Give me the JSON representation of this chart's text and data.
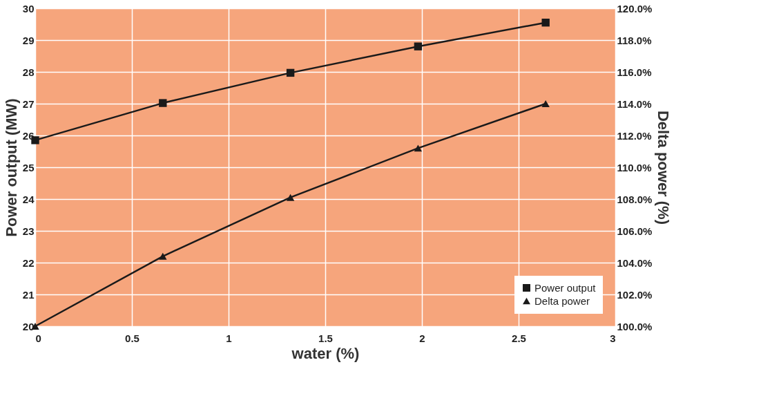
{
  "chart_data": {
    "type": "line",
    "xlabel": "water (%)",
    "ylabel": "Power output (MW)",
    "y2label": "Delta power (%)",
    "x": [
      0,
      0.66,
      1.32,
      1.98,
      2.64
    ],
    "series": [
      {
        "name": "Power output",
        "color": "#1a1a1a",
        "marker": "square",
        "values": [
          25.85,
          27.02,
          27.97,
          28.8,
          29.55
        ]
      },
      {
        "name": "Delta power",
        "color": "#1a1a1a",
        "marker": "triangle",
        "axis": "y2",
        "values": [
          100.0,
          104.4,
          108.1,
          111.2,
          114.0
        ]
      }
    ],
    "xlim": [
      0,
      3
    ],
    "xticks": [
      0,
      0.5,
      1,
      1.5,
      2,
      2.5,
      3
    ],
    "ylim": [
      20,
      30
    ],
    "yticks": [
      20,
      21,
      22,
      23,
      24,
      25,
      26,
      27,
      28,
      29,
      30
    ],
    "y2lim": [
      100,
      120
    ],
    "y2ticks": [
      {
        "value": 100,
        "label": "100.0%"
      },
      {
        "value": 102,
        "label": "102.0%"
      },
      {
        "value": 104,
        "label": "104.0%"
      },
      {
        "value": 106,
        "label": "106.0%"
      },
      {
        "value": 108,
        "label": "108.0%"
      },
      {
        "value": 110,
        "label": "110.0%"
      },
      {
        "value": 112,
        "label": "112.0%"
      },
      {
        "value": 114,
        "label": "114.0%"
      },
      {
        "value": 116,
        "label": "116.0%"
      },
      {
        "value": 118,
        "label": "118.0%"
      },
      {
        "value": 120,
        "label": "120.0%"
      }
    ],
    "grid": true,
    "legend": "bottom right",
    "line_style": "solid"
  }
}
